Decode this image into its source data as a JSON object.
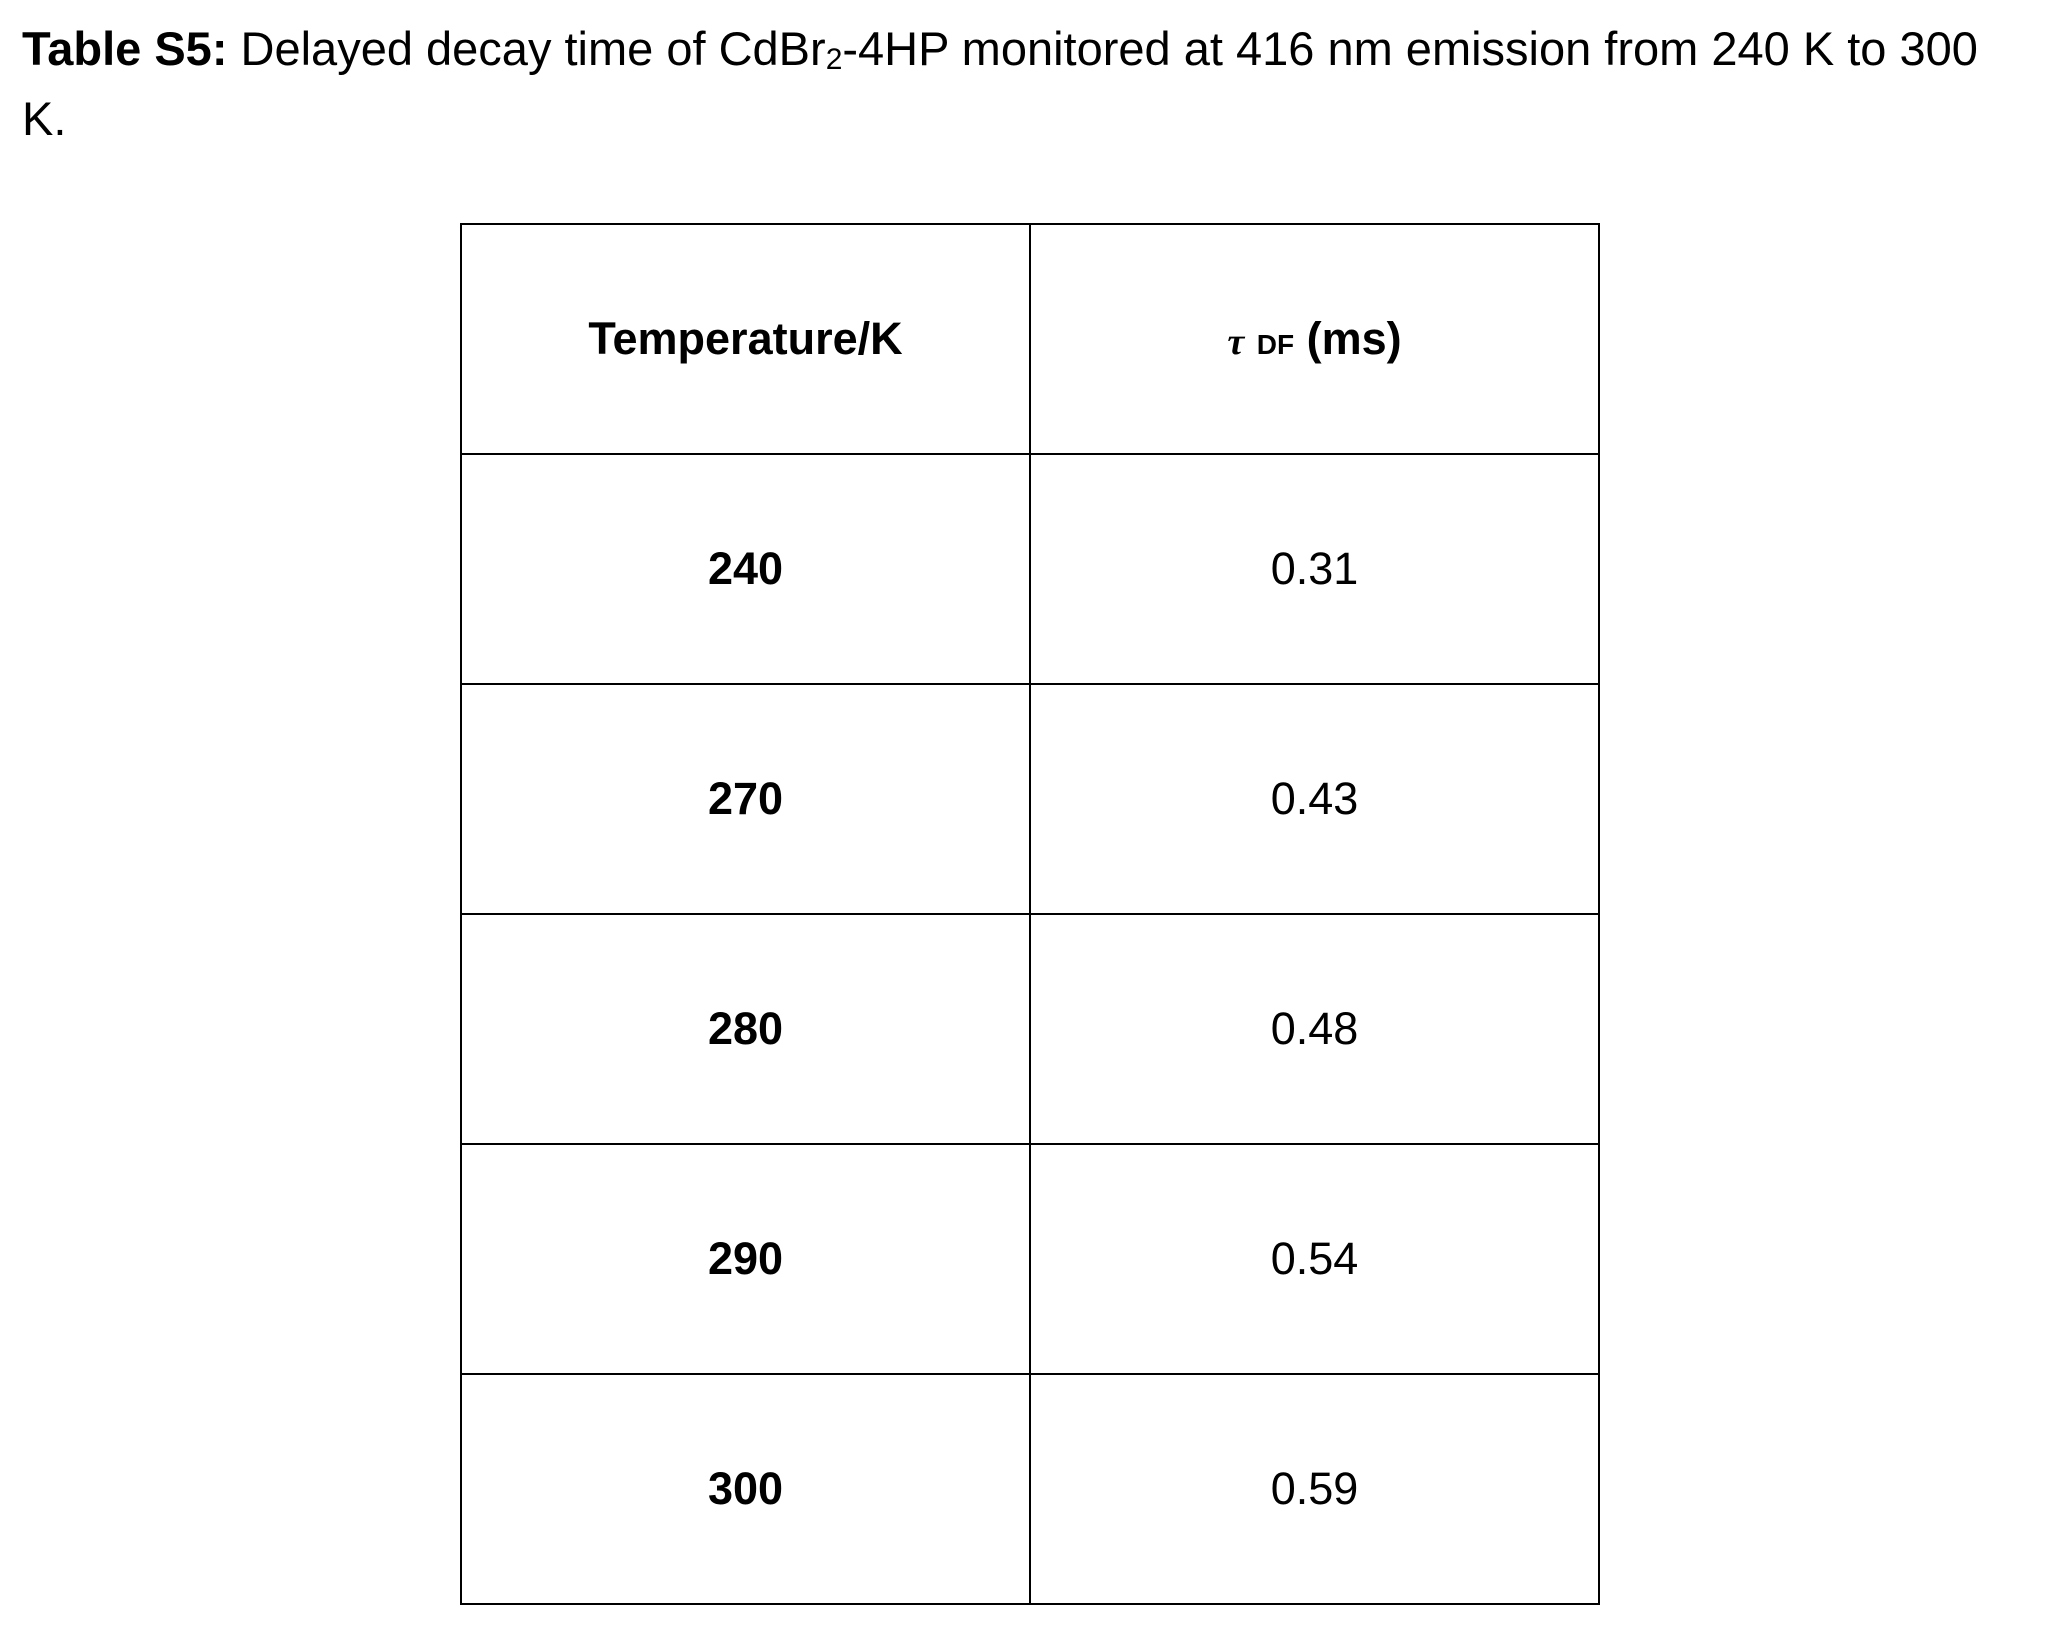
{
  "caption": {
    "label": "Table S5:",
    "text_before_sub": " Delayed decay time of CdBr",
    "subscript": "2",
    "text_after_sub": "-4HP monitored at 416 nm emission from 240 K to 300 K."
  },
  "table": {
    "headers": {
      "temperature": "Temperature/K",
      "tau_symbol": "τ",
      "tau_subscript": "DF",
      "tau_unit": "(ms)"
    },
    "rows": [
      {
        "temperature": "240",
        "tau": "0.31"
      },
      {
        "temperature": "270",
        "tau": "0.43"
      },
      {
        "temperature": "280",
        "tau": "0.48"
      },
      {
        "temperature": "290",
        "tau": "0.54"
      },
      {
        "temperature": "300",
        "tau": "0.59"
      }
    ]
  }
}
